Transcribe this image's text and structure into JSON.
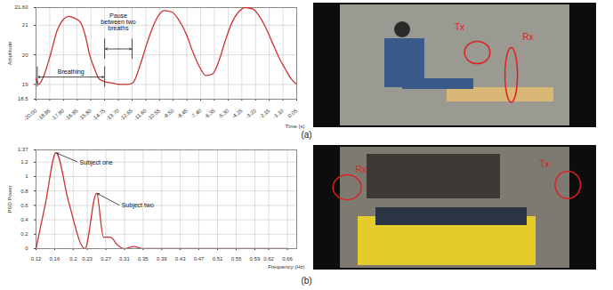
{
  "chart_data": [
    {
      "type": "line",
      "caption": "(a)",
      "x_label": "Time (s)",
      "y_label": "Amplitude",
      "color": "#cc3333",
      "grid": true,
      "x": [
        -20,
        -19.8,
        -19.4,
        -18.9,
        -18.4,
        -17.9,
        -17.5,
        -17.1,
        -16.6,
        -16.2,
        -15.9,
        -15.5,
        -15.2,
        -14.8,
        -14.2,
        -13.6,
        -13.0,
        -12.6,
        -12.0,
        -11.5,
        -11.1,
        -10.6,
        -10.2,
        -9.6,
        -9.1,
        -8.5,
        -8.0,
        -7.5,
        -7.0,
        -6.5,
        -6.0,
        -5.5,
        -5.0,
        -4.5,
        -4.0,
        -3.4,
        -2.9,
        -2.4,
        -1.9,
        -1.4,
        -0.9,
        -0.5,
        -0.05
      ],
      "values": [
        19.2,
        19.0,
        19.3,
        20.0,
        20.8,
        21.2,
        21.3,
        21.25,
        21.1,
        20.6,
        20.0,
        19.5,
        19.2,
        19.1,
        19.05,
        19.0,
        19.0,
        19.05,
        19.7,
        20.4,
        20.9,
        21.35,
        21.5,
        21.45,
        21.2,
        20.7,
        20.1,
        19.6,
        19.3,
        19.35,
        19.8,
        20.5,
        21.1,
        21.45,
        21.6,
        21.55,
        21.3,
        20.9,
        20.4,
        19.9,
        19.5,
        19.2,
        19.0
      ],
      "xlim": [
        -20,
        -0.05
      ],
      "xticks": [
        {
          "value": -20,
          "label": "-20.00"
        },
        {
          "value": -18.95,
          "label": "-18.95"
        },
        {
          "value": -17.9,
          "label": "-17.90"
        },
        {
          "value": -16.85,
          "label": "-16.85"
        },
        {
          "value": -15.8,
          "label": "-15.80"
        },
        {
          "value": -14.75,
          "label": "-14.75"
        },
        {
          "value": -13.7,
          "label": "-13.70"
        },
        {
          "value": -12.65,
          "label": "-12.65"
        },
        {
          "value": -11.6,
          "label": "-11.60"
        },
        {
          "value": -10.55,
          "label": "-10.55"
        },
        {
          "value": -9.5,
          "label": "-9.50"
        },
        {
          "value": -8.45,
          "label": "-8.45"
        },
        {
          "value": -7.4,
          "label": "-7.40"
        },
        {
          "value": -6.35,
          "label": "-6.35"
        },
        {
          "value": -5.3,
          "label": "-5.30"
        },
        {
          "value": -4.25,
          "label": "-4.25"
        },
        {
          "value": -3.2,
          "label": "-3.20"
        },
        {
          "value": -2.15,
          "label": "-2.15"
        },
        {
          "value": -1.1,
          "label": "-1.10"
        },
        {
          "value": -0.05,
          "label": "-0.05"
        }
      ],
      "ylim": [
        18.5,
        21.6
      ],
      "yticks": [
        18.5,
        19,
        20,
        21,
        {
          "value": 21.6,
          "label": "21.60"
        }
      ],
      "annotations": [
        {
          "text": "Breathing",
          "x": [
            -19.9,
            -14.75
          ],
          "y": 19.25
        },
        {
          "text": "Pause between two breaths",
          "x": [
            -14.75,
            -12.65
          ],
          "y": 20.2,
          "text_y": 21.1
        }
      ],
      "photo_labels": [
        "Tx",
        "Rx"
      ]
    },
    {
      "type": "line",
      "caption": "(b)",
      "x_label": "Frequency (Hz)",
      "y_label": "PSD Power",
      "color": "#cc3333",
      "grid": true,
      "x": [
        0.12,
        0.14,
        0.163,
        0.19,
        0.225,
        0.25,
        0.265,
        0.28,
        0.295,
        0.31,
        0.33,
        0.35,
        0.4,
        0.45,
        0.5,
        0.55,
        0.6,
        0.66
      ],
      "values": [
        0,
        0.62,
        1.33,
        0.65,
        0,
        0.77,
        0.16,
        0.16,
        0.05,
        0,
        0.03,
        0,
        0,
        0,
        0,
        0,
        0,
        0
      ],
      "xlim": [
        0.12,
        0.68
      ],
      "xticks": [
        0.12,
        0.16,
        0.2,
        0.23,
        0.27,
        0.31,
        0.35,
        0.39,
        0.43,
        0.47,
        0.51,
        0.55,
        0.59,
        0.62,
        0.66
      ],
      "ylim": [
        0,
        1.37
      ],
      "yticks": [
        0,
        0.2,
        0.4,
        0.6,
        0.8,
        1,
        1.2,
        1.37
      ],
      "annotations": [
        {
          "text": "Subject one",
          "x": 0.21,
          "y": 1.2,
          "point": [
            0.163,
            1.33
          ]
        },
        {
          "text": "Subject two",
          "x": 0.3,
          "y": 0.6,
          "point": [
            0.25,
            0.77
          ]
        }
      ],
      "photo_labels": [
        "Rx",
        "Tx"
      ]
    }
  ]
}
